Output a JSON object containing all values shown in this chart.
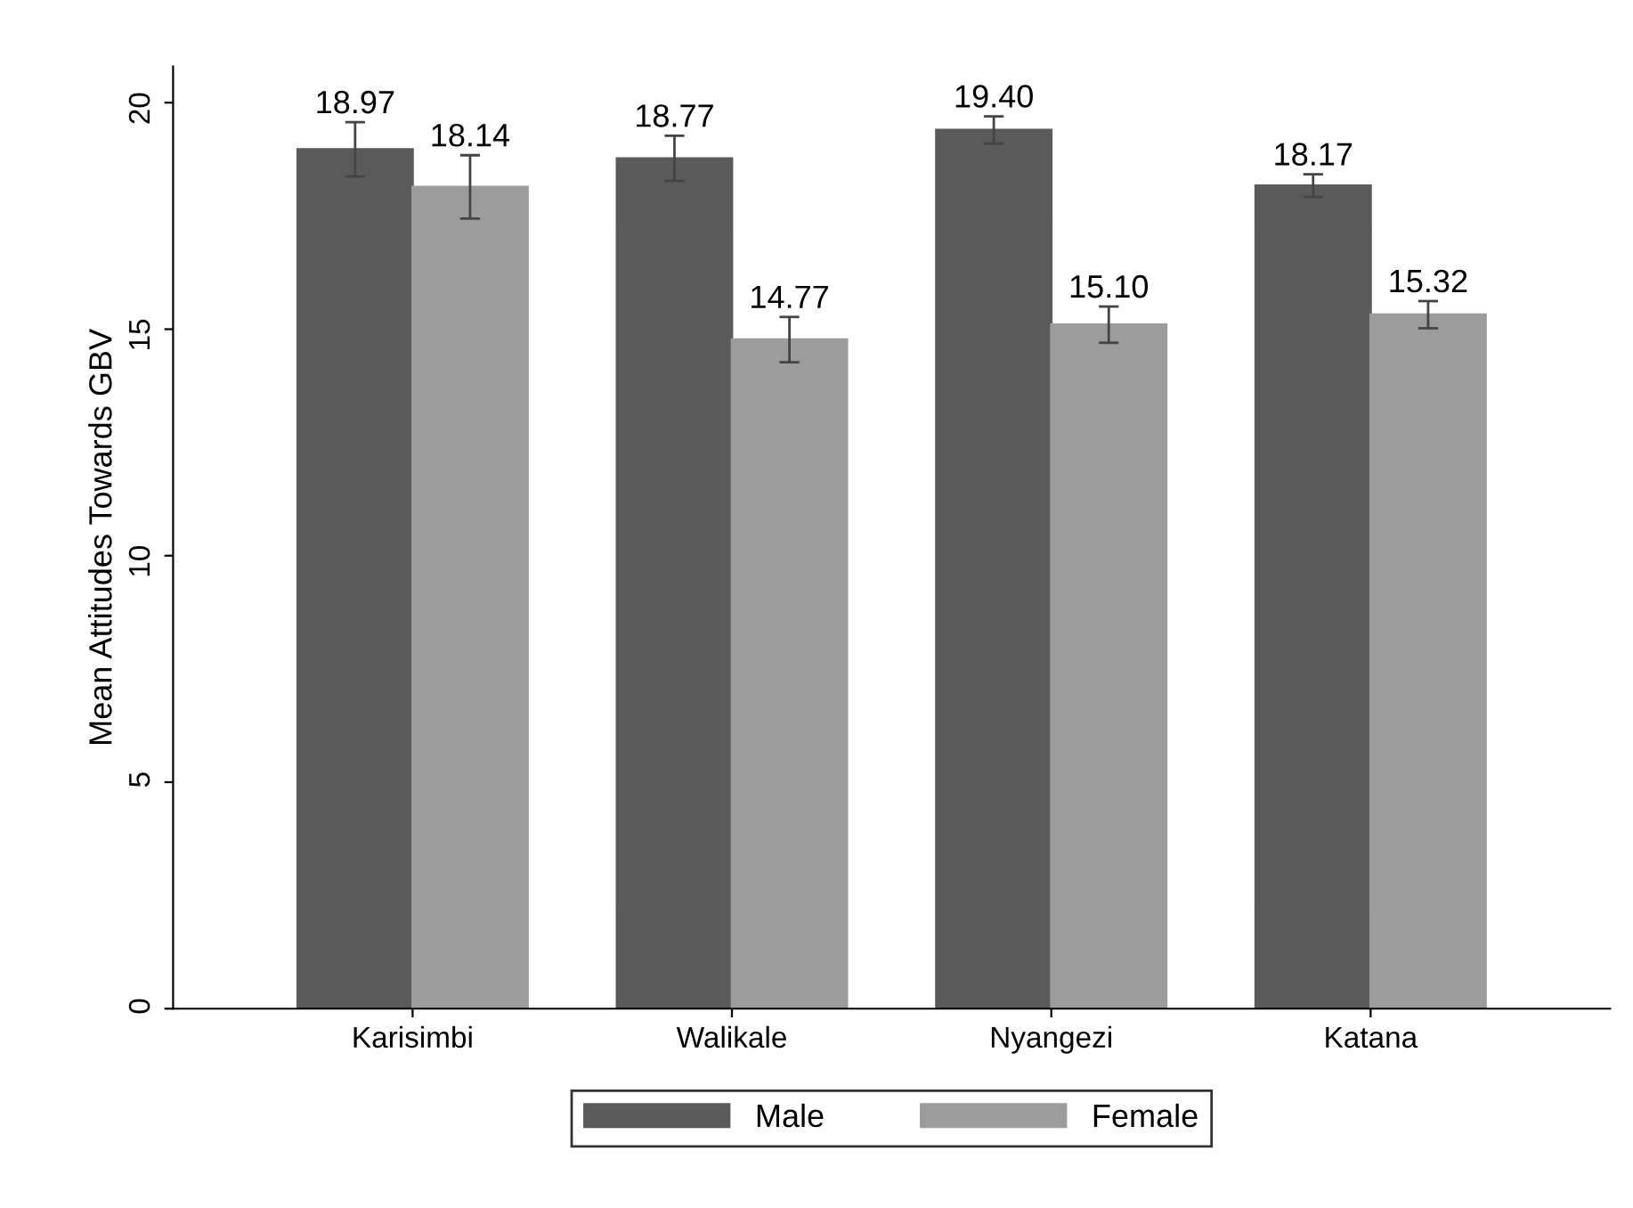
{
  "chart_data": {
    "type": "bar",
    "ylabel": "Mean Attitudes Towards GBV",
    "categories": [
      "Karisimbi",
      "Walikale",
      "Nyangezi",
      "Katana"
    ],
    "series": [
      {
        "name": "Male",
        "color": "#5a5a5a",
        "values": [
          18.97,
          18.77,
          19.4,
          18.17
        ],
        "value_labels": [
          "18.97",
          "18.77",
          "19.40",
          "18.17"
        ],
        "errors": [
          0.6,
          0.5,
          0.3,
          0.25
        ]
      },
      {
        "name": "Female",
        "color": "#9c9c9c",
        "values": [
          18.14,
          14.77,
          15.1,
          15.32
        ],
        "value_labels": [
          "18.14",
          "14.77",
          "15.10",
          "15.32"
        ],
        "errors": [
          0.7,
          0.5,
          0.4,
          0.3
        ]
      }
    ],
    "ylim": [
      0,
      20.8
    ],
    "yticks": [
      0,
      5,
      10,
      15,
      20
    ],
    "grid": false,
    "legend": "bottom"
  }
}
